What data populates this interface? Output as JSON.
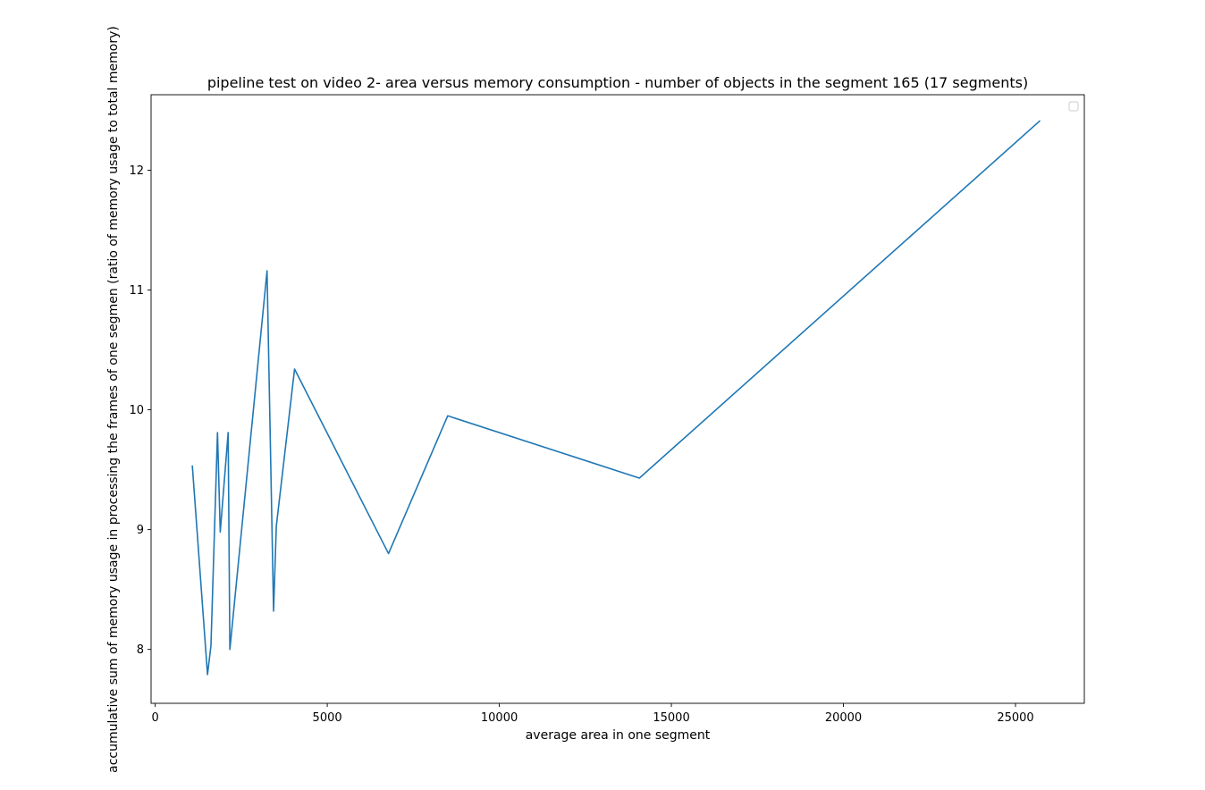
{
  "chart_data": {
    "type": "line",
    "title": "pipeline test on video 2- area versus memory consumption - number of objects in the segment 165 (17 segments)",
    "xlabel": "average area in one segment",
    "ylabel": "accumulative sum of memory usage in processing the frames of one segmen (ratio of memory usage to total memory)",
    "xlim": [
      -120,
      27000
    ],
    "ylim": [
      7.55,
      12.63
    ],
    "xticks": [
      0,
      5000,
      10000,
      15000,
      20000,
      25000
    ],
    "xtick_labels": [
      "0",
      "5000",
      "10000",
      "15000",
      "20000",
      "25000"
    ],
    "yticks": [
      8,
      9,
      10,
      11,
      12
    ],
    "ytick_labels": [
      "8",
      "9",
      "10",
      "11",
      "12"
    ],
    "grid": false,
    "legend": {
      "placement": "top-right",
      "entries": []
    },
    "series": [
      {
        "color": "#1f77b4",
        "x": [
          1080,
          1520,
          1620,
          1810,
          1890,
          2120,
          2170,
          3250,
          3440,
          3520,
          4050,
          6780,
          8500,
          14070,
          25700
        ],
        "y": [
          9.53,
          7.79,
          8.03,
          9.81,
          8.98,
          9.81,
          8.0,
          11.16,
          8.32,
          9.03,
          10.34,
          8.8,
          9.95,
          9.43,
          12.41
        ]
      }
    ]
  }
}
